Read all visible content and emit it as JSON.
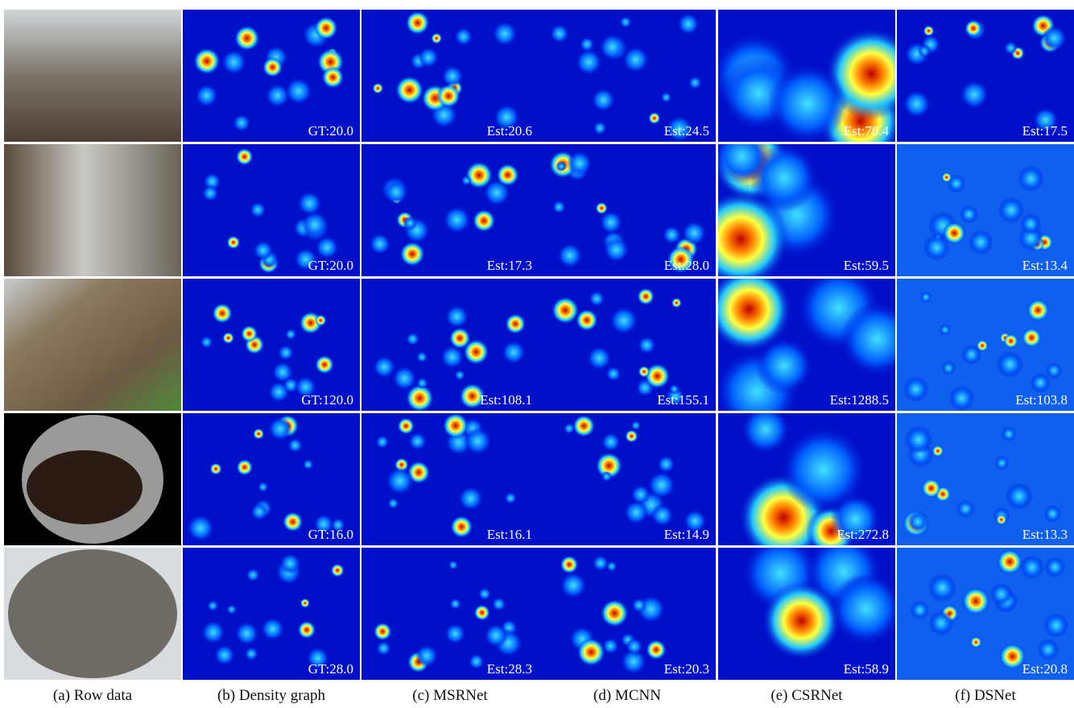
{
  "columns": [
    "(a) Row data",
    "(b) Density graph",
    "(c) MSRNet",
    "(d) MCNN",
    "(e) CSRNet",
    "(f) DSNet"
  ],
  "rows": [
    [
      "GT:20.0",
      "Est:20.6",
      "Est:24.5",
      "Est:78.4",
      "Est:17.5"
    ],
    [
      "GT:20.0",
      "Est:17.3",
      "Est:28.0",
      "Est:59.5",
      "Est:13.4"
    ],
    [
      "GT:120.0",
      "Est:108.1",
      "Est:155.1",
      "Est:1288.5",
      "Est:103.8"
    ],
    [
      "GT:16.0",
      "Est:16.1",
      "Est:14.9",
      "Est:272.8",
      "Est:13.3"
    ],
    [
      "GT:28.0",
      "Est:28.3",
      "Est:20.3",
      "Est:58.9",
      "Est:20.8"
    ]
  ]
}
